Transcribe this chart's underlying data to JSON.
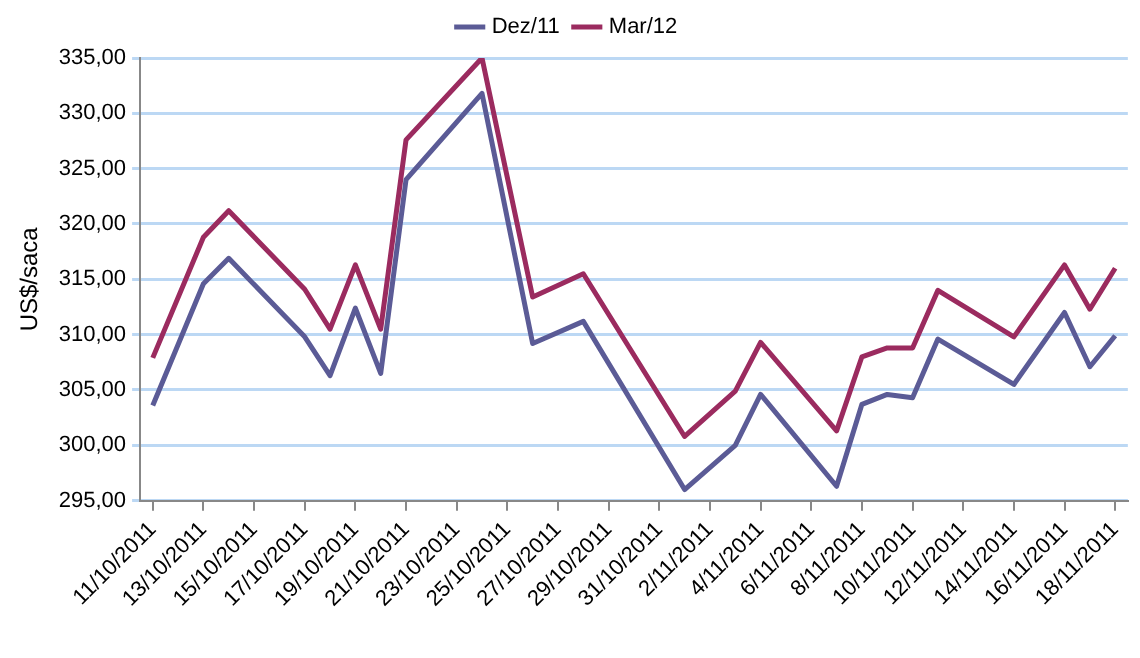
{
  "chart_data": {
    "type": "line",
    "ylabel": "US$/saca",
    "x": [
      "2011-10-11",
      "2011-10-13",
      "2011-10-14",
      "2011-10-17",
      "2011-10-18",
      "2011-10-19",
      "2011-10-20",
      "2011-10-21",
      "2011-10-24",
      "2011-10-26",
      "2011-10-28",
      "2011-11-01",
      "2011-11-03",
      "2011-11-04",
      "2011-11-07",
      "2011-11-08",
      "2011-11-09",
      "2011-11-10",
      "2011-11-11",
      "2011-11-14",
      "2011-11-16",
      "2011-11-17",
      "2011-11-18"
    ],
    "series": [
      {
        "name": "Dez/11",
        "color": "#5b5b96",
        "values": [
          303.6,
          314.6,
          316.9,
          309.8,
          306.3,
          312.4,
          306.5,
          324.0,
          331.8,
          309.2,
          311.2,
          296.0,
          300.0,
          304.6,
          296.3,
          303.7,
          304.6,
          304.3,
          309.6,
          305.5,
          312.0,
          307.1,
          309.9
        ]
      },
      {
        "name": "Mar/12",
        "color": "#9b2b5f",
        "values": [
          307.9,
          318.8,
          321.2,
          314.1,
          310.5,
          316.3,
          310.5,
          327.6,
          335.0,
          313.4,
          315.5,
          300.8,
          304.9,
          309.3,
          301.3,
          308.0,
          308.8,
          308.8,
          314.0,
          309.8,
          316.3,
          312.3,
          316.0
        ]
      }
    ],
    "ylim": [
      295,
      335
    ],
    "yticks": [
      {
        "value": 295,
        "label": "295,00"
      },
      {
        "value": 300,
        "label": "300,00"
      },
      {
        "value": 305,
        "label": "305,00"
      },
      {
        "value": 310,
        "label": "310,00"
      },
      {
        "value": 315,
        "label": "315,00"
      },
      {
        "value": 320,
        "label": "320,00"
      },
      {
        "value": 325,
        "label": "325,00"
      },
      {
        "value": 330,
        "label": "330,00"
      },
      {
        "value": 335,
        "label": "335,00"
      }
    ],
    "xlim": [
      "2011-10-10T12:00",
      "2011-11-18T12:00"
    ],
    "xticks": [
      {
        "value": "2011-10-11",
        "label": "11/10/2011"
      },
      {
        "value": "2011-10-13",
        "label": "13/10/2011"
      },
      {
        "value": "2011-10-15",
        "label": "15/10/2011"
      },
      {
        "value": "2011-10-17",
        "label": "17/10/2011"
      },
      {
        "value": "2011-10-19",
        "label": "19/10/2011"
      },
      {
        "value": "2011-10-21",
        "label": "21/10/2011"
      },
      {
        "value": "2011-10-23",
        "label": "23/10/2011"
      },
      {
        "value": "2011-10-25",
        "label": "25/10/2011"
      },
      {
        "value": "2011-10-27",
        "label": "27/10/2011"
      },
      {
        "value": "2011-10-29",
        "label": "29/10/2011"
      },
      {
        "value": "2011-10-31",
        "label": "31/10/2011"
      },
      {
        "value": "2011-11-02",
        "label": "2/11/2011"
      },
      {
        "value": "2011-11-04",
        "label": "4/11/2011"
      },
      {
        "value": "2011-11-06",
        "label": "6/11/2011"
      },
      {
        "value": "2011-11-08",
        "label": "8/11/2011"
      },
      {
        "value": "2011-11-10",
        "label": "10/11/2011"
      },
      {
        "value": "2011-11-12",
        "label": "12/11/2011"
      },
      {
        "value": "2011-11-14",
        "label": "14/11/2011"
      },
      {
        "value": "2011-11-16",
        "label": "16/11/2011"
      },
      {
        "value": "2011-11-18",
        "label": "18/11/2011"
      }
    ],
    "grid": "y",
    "legend": "top",
    "marker": "none",
    "line_style": "solid"
  }
}
